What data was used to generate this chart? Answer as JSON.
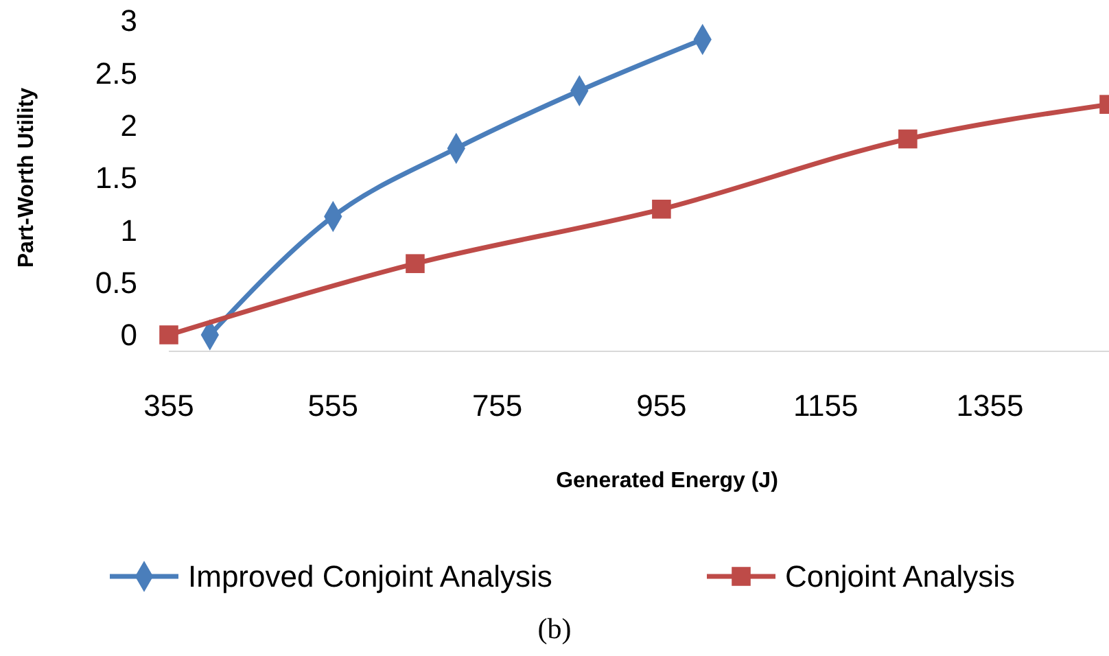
{
  "chart_data": {
    "type": "line",
    "xlabel": "Generated Energy (J)",
    "ylabel": "Part-Worth Utility",
    "xlim": [
      355,
      1500
    ],
    "xticks": [
      355,
      555,
      755,
      955,
      1155,
      1355
    ],
    "ylim": [
      0,
      3
    ],
    "yticks": [
      0,
      0.5,
      1,
      1.5,
      2,
      2.5,
      3
    ],
    "grid": false,
    "legend": "bottom",
    "annotations": [
      "(b)"
    ],
    "series": [
      {
        "name": "Improved Conjoint Analysis",
        "color": "#4a7ebb",
        "marker": "diamond",
        "x": [
          405,
          555,
          705,
          855,
          1005
        ],
        "values": [
          0,
          1.13,
          1.78,
          2.33,
          2.82
        ]
      },
      {
        "name": "Conjoint Analysis",
        "color": "#be4b48",
        "marker": "square",
        "x": [
          355,
          655,
          955,
          1255,
          1500
        ],
        "values": [
          0,
          0.68,
          1.2,
          1.87,
          2.2
        ]
      }
    ]
  }
}
